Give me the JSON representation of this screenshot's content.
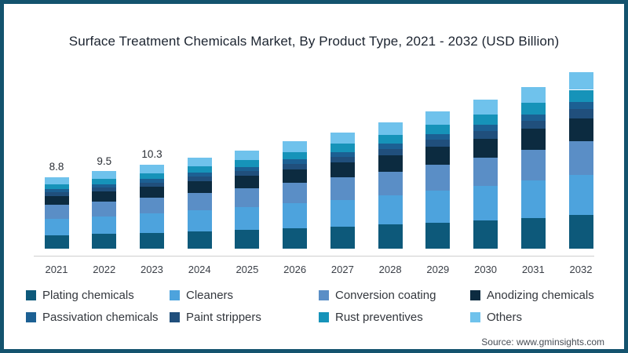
{
  "frame": {
    "border_color": "#14536e",
    "background_color": "#ffffff"
  },
  "title": "Surface Treatment Chemicals Market, By Product Type, 2021 - 2032 (USD Billion)",
  "source": "Source: www.gminsights.com",
  "chart_data": {
    "type": "bar",
    "stacked": true,
    "title": "Surface Treatment Chemicals Market, By Product Type, 2021 - 2032 (USD Billion)",
    "xlabel": "",
    "ylabel": "USD Billion",
    "ylim": [
      0,
      22
    ],
    "grid": false,
    "legend_position": "bottom",
    "axis_line_color": "#cfcfcf",
    "categories": [
      "2021",
      "2022",
      "2023",
      "2024",
      "2025",
      "2026",
      "2027",
      "2028",
      "2029",
      "2030",
      "2031",
      "2032"
    ],
    "totals": [
      8.8,
      9.5,
      10.3,
      11.2,
      12.1,
      13.2,
      14.3,
      15.5,
      16.9,
      18.3,
      19.9,
      21.7
    ],
    "visible_total_labels": {
      "2021": "8.8",
      "2022": "9.5",
      "2023": "10.3"
    },
    "series": [
      {
        "name": "Plating chemicals",
        "color": "#0d597a",
        "values": [
          1.67,
          1.81,
          1.96,
          2.13,
          2.3,
          2.51,
          2.72,
          2.95,
          3.21,
          3.48,
          3.78,
          4.12
        ]
      },
      {
        "name": "Cleaners",
        "color": "#4da3dd",
        "values": [
          2.02,
          2.19,
          2.37,
          2.58,
          2.78,
          3.04,
          3.29,
          3.57,
          3.89,
          4.21,
          4.58,
          4.99
        ]
      },
      {
        "name": "Conversion coating",
        "color": "#5a8ec6",
        "values": [
          1.67,
          1.81,
          1.96,
          2.13,
          2.3,
          2.51,
          2.72,
          2.95,
          3.21,
          3.48,
          3.78,
          4.12
        ]
      },
      {
        "name": "Anodizing chemicals",
        "color": "#0c2b40",
        "values": [
          1.14,
          1.24,
          1.34,
          1.46,
          1.57,
          1.72,
          1.86,
          2.02,
          2.2,
          2.38,
          2.59,
          2.82
        ]
      },
      {
        "name": "Paint strippers",
        "color": "#204f7c",
        "values": [
          0.44,
          0.48,
          0.52,
          0.56,
          0.61,
          0.66,
          0.72,
          0.78,
          0.85,
          0.92,
          1.0,
          1.09
        ]
      },
      {
        "name": "Passivation chemicals",
        "color": "#1c6093",
        "values": [
          0.35,
          0.38,
          0.41,
          0.45,
          0.48,
          0.53,
          0.57,
          0.62,
          0.68,
          0.73,
          0.8,
          0.87
        ]
      },
      {
        "name": "Rust preventives",
        "color": "#1693b9",
        "values": [
          0.62,
          0.67,
          0.72,
          0.78,
          0.85,
          0.92,
          1.0,
          1.09,
          1.18,
          1.28,
          1.39,
          1.52
        ]
      },
      {
        "name": "Others",
        "color": "#6fc2ec",
        "values": [
          0.88,
          0.95,
          1.03,
          1.12,
          1.21,
          1.32,
          1.43,
          1.55,
          1.69,
          1.83,
          1.99,
          2.17
        ]
      }
    ],
    "legend": [
      {
        "label": "Plating chemicals",
        "color": "#0d597a"
      },
      {
        "label": "Cleaners",
        "color": "#4da3dd"
      },
      {
        "label": "Conversion coating",
        "color": "#5a8ec6"
      },
      {
        "label": "Anodizing chemicals",
        "color": "#0c2b40"
      },
      {
        "label": "Passivation chemicals",
        "color": "#1c6093"
      },
      {
        "label": "Paint strippers",
        "color": "#204f7c"
      },
      {
        "label": "Rust preventives",
        "color": "#1693b9"
      },
      {
        "label": "Others",
        "color": "#6fc2ec"
      }
    ]
  }
}
